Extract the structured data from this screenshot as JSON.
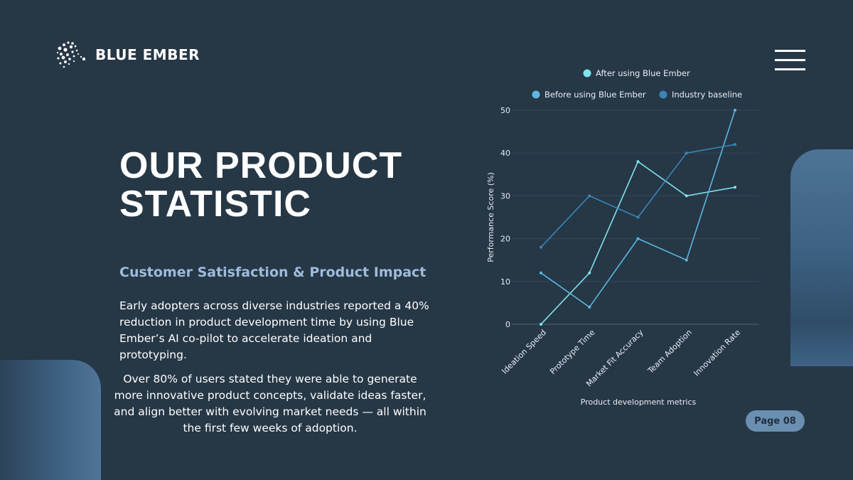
{
  "brand": {
    "name": "BLUE EMBER"
  },
  "headline": {
    "line1": "OUR PRODUCT",
    "line2": "STATISTIC"
  },
  "subheading": "Customer Satisfaction & Product Impact",
  "paragraph1": "Early adopters across diverse industries reported a 40% reduction in product development time by using Blue Ember’s AI co-pilot to accelerate ideation and prototyping.",
  "paragraph2": "Over 80% of users stated they were able to generate more innovative product concepts, validate ideas faster, and align better with evolving market needs — all within the first few weeks of adoption.",
  "page_label": "Page 08",
  "colors": {
    "background": "#263746",
    "accent": "#9fbbdb",
    "series_after": "#7fe3ee",
    "series_before": "#5cb8e0",
    "series_baseline": "#3a86b8"
  },
  "chart_data": {
    "type": "line",
    "title": "",
    "xlabel": "Product development metrics",
    "ylabel": "Performance Score (%)",
    "ylim": [
      0,
      50
    ],
    "yticks": [
      0,
      10,
      20,
      30,
      40,
      50
    ],
    "categories": [
      "Ideation Speed",
      "Prototype Time",
      "Market Fit Accuracy",
      "Team Adoption",
      "Innovation Rate"
    ],
    "grid": true,
    "legend_position": "top",
    "series": [
      {
        "name": "After using Blue Ember",
        "values": [
          0,
          12,
          38,
          30,
          32
        ]
      },
      {
        "name": "Before using Blue Ember",
        "values": [
          12,
          4,
          20,
          15,
          50
        ]
      },
      {
        "name": "Industry baseline",
        "values": [
          18,
          30,
          25,
          40,
          42
        ]
      }
    ]
  }
}
